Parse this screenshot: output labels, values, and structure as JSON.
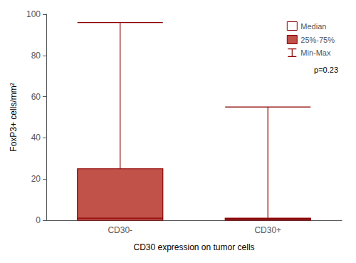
{
  "chart_data": {
    "type": "boxplot",
    "xlabel": "CD30 expression on tumor cells",
    "ylabel": "FoxP3+ cells/mm²",
    "categories": [
      "CD30-",
      "CD30+"
    ],
    "min": [
      0,
      0
    ],
    "q1": [
      0,
      0
    ],
    "median": [
      1,
      1
    ],
    "q3": [
      25,
      1
    ],
    "max": [
      96,
      55
    ],
    "colors": [
      "#c0524a",
      "#8b1a1a"
    ],
    "color": "#8b0000",
    "ylim": [
      0,
      100
    ],
    "yticks": [
      0,
      20,
      40,
      60,
      80,
      100
    ],
    "grid": false,
    "legend": "upper right",
    "legend_entries": [
      "Median",
      "25%-75%",
      "Min-Max"
    ],
    "annotations": [
      {
        "text": "p=0.23"
      }
    ]
  }
}
